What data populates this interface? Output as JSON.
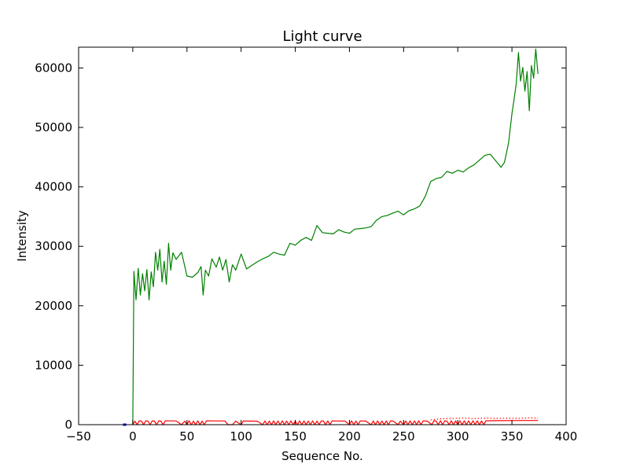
{
  "chart_data": {
    "type": "line",
    "title": "Light curve",
    "xlabel": "Sequence No.",
    "ylabel": "Intensity",
    "xlim": [
      -50,
      400
    ],
    "ylim": [
      0,
      63500
    ],
    "xticks": [
      -50,
      0,
      50,
      100,
      150,
      200,
      250,
      300,
      350,
      400
    ],
    "yticks": [
      0,
      10000,
      20000,
      30000,
      40000,
      50000,
      60000
    ],
    "xtick_labels": [
      "−50",
      "0",
      "50",
      "100",
      "150",
      "200",
      "250",
      "300",
      "350",
      "400"
    ],
    "ytick_labels": [
      "0",
      "10000",
      "20000",
      "30000",
      "40000",
      "50000",
      "60000"
    ],
    "grid": false,
    "legend": "none",
    "series": [
      {
        "color": "#008000",
        "style": "solid",
        "points": [
          [
            0,
            0
          ],
          [
            1,
            25800
          ],
          [
            3,
            21000
          ],
          [
            5,
            26300
          ],
          [
            7,
            21800
          ],
          [
            9,
            25400
          ],
          [
            11,
            22500
          ],
          [
            13,
            26100
          ],
          [
            15,
            21000
          ],
          [
            17,
            25700
          ],
          [
            19,
            23200
          ],
          [
            21,
            29000
          ],
          [
            23,
            26000
          ],
          [
            25,
            29500
          ],
          [
            27,
            24000
          ],
          [
            29,
            27500
          ],
          [
            31,
            23600
          ],
          [
            33,
            30500
          ],
          [
            35,
            26000
          ],
          [
            37,
            28900
          ],
          [
            40,
            27800
          ],
          [
            45,
            29000
          ],
          [
            50,
            25000
          ],
          [
            55,
            24800
          ],
          [
            60,
            25600
          ],
          [
            63,
            26600
          ],
          [
            65,
            21800
          ],
          [
            67,
            26000
          ],
          [
            70,
            25000
          ],
          [
            73,
            27900
          ],
          [
            77,
            26500
          ],
          [
            80,
            28200
          ],
          [
            83,
            26000
          ],
          [
            86,
            27800
          ],
          [
            89,
            24000
          ],
          [
            92,
            26900
          ],
          [
            95,
            26000
          ],
          [
            100,
            28700
          ],
          [
            105,
            26200
          ],
          [
            110,
            26800
          ],
          [
            115,
            27400
          ],
          [
            120,
            27900
          ],
          [
            125,
            28300
          ],
          [
            130,
            29000
          ],
          [
            135,
            28700
          ],
          [
            140,
            28500
          ],
          [
            145,
            30500
          ],
          [
            150,
            30200
          ],
          [
            155,
            31000
          ],
          [
            160,
            31500
          ],
          [
            165,
            31000
          ],
          [
            170,
            33500
          ],
          [
            175,
            32300
          ],
          [
            180,
            32200
          ],
          [
            185,
            32100
          ],
          [
            190,
            32800
          ],
          [
            195,
            32400
          ],
          [
            200,
            32200
          ],
          [
            205,
            32900
          ],
          [
            210,
            33000
          ],
          [
            215,
            33100
          ],
          [
            220,
            33300
          ],
          [
            225,
            34400
          ],
          [
            230,
            35000
          ],
          [
            235,
            35200
          ],
          [
            240,
            35600
          ],
          [
            245,
            35900
          ],
          [
            250,
            35300
          ],
          [
            255,
            36000
          ],
          [
            260,
            36300
          ],
          [
            265,
            36800
          ],
          [
            270,
            38400
          ],
          [
            275,
            40900
          ],
          [
            280,
            41400
          ],
          [
            285,
            41600
          ],
          [
            290,
            42600
          ],
          [
            295,
            42300
          ],
          [
            300,
            42800
          ],
          [
            305,
            42500
          ],
          [
            310,
            43200
          ],
          [
            315,
            43700
          ],
          [
            320,
            44500
          ],
          [
            325,
            45300
          ],
          [
            330,
            45500
          ],
          [
            335,
            44400
          ],
          [
            340,
            43300
          ],
          [
            343,
            44100
          ],
          [
            345,
            45700
          ],
          [
            347,
            47600
          ],
          [
            350,
            52300
          ],
          [
            352,
            54800
          ],
          [
            354,
            57400
          ],
          [
            356,
            62600
          ],
          [
            358,
            57800
          ],
          [
            360,
            60100
          ],
          [
            362,
            56100
          ],
          [
            364,
            59400
          ],
          [
            366,
            52800
          ],
          [
            368,
            60400
          ],
          [
            370,
            58300
          ],
          [
            372,
            63200
          ],
          [
            374,
            59000
          ]
        ]
      },
      {
        "color": "#ff0000",
        "style": "solid",
        "points": [
          [
            0,
            0
          ],
          [
            2,
            600
          ],
          [
            4,
            0
          ],
          [
            6,
            650
          ],
          [
            8,
            600
          ],
          [
            10,
            0
          ],
          [
            12,
            650
          ],
          [
            14,
            600
          ],
          [
            16,
            0
          ],
          [
            18,
            650
          ],
          [
            20,
            600
          ],
          [
            22,
            0
          ],
          [
            24,
            650
          ],
          [
            26,
            600
          ],
          [
            28,
            0
          ],
          [
            30,
            650
          ],
          [
            35,
            640
          ],
          [
            40,
            620
          ],
          [
            45,
            0
          ],
          [
            48,
            600
          ],
          [
            50,
            0
          ],
          [
            52,
            650
          ],
          [
            54,
            0
          ],
          [
            56,
            600
          ],
          [
            58,
            0
          ],
          [
            60,
            650
          ],
          [
            62,
            0
          ],
          [
            64,
            600
          ],
          [
            66,
            0
          ],
          [
            68,
            650
          ],
          [
            75,
            640
          ],
          [
            85,
            620
          ],
          [
            88,
            0
          ],
          [
            92,
            0
          ],
          [
            95,
            600
          ],
          [
            100,
            0
          ],
          [
            102,
            620
          ],
          [
            110,
            600
          ],
          [
            115,
            580
          ],
          [
            120,
            0
          ],
          [
            122,
            640
          ],
          [
            124,
            0
          ],
          [
            126,
            610
          ],
          [
            128,
            0
          ],
          [
            130,
            640
          ],
          [
            132,
            0
          ],
          [
            134,
            620
          ],
          [
            136,
            0
          ],
          [
            138,
            640
          ],
          [
            140,
            0
          ],
          [
            142,
            610
          ],
          [
            144,
            0
          ],
          [
            146,
            630
          ],
          [
            148,
            0
          ],
          [
            150,
            600
          ],
          [
            152,
            0
          ],
          [
            154,
            640
          ],
          [
            156,
            0
          ],
          [
            158,
            620
          ],
          [
            160,
            0
          ],
          [
            162,
            600
          ],
          [
            164,
            0
          ],
          [
            166,
            630
          ],
          [
            168,
            0
          ],
          [
            170,
            610
          ],
          [
            172,
            0
          ],
          [
            174,
            640
          ],
          [
            176,
            620
          ],
          [
            178,
            0
          ],
          [
            180,
            630
          ],
          [
            182,
            0
          ],
          [
            184,
            640
          ],
          [
            190,
            620
          ],
          [
            196,
            600
          ],
          [
            200,
            0
          ],
          [
            202,
            630
          ],
          [
            204,
            0
          ],
          [
            206,
            620
          ],
          [
            208,
            0
          ],
          [
            210,
            630
          ],
          [
            215,
            610
          ],
          [
            220,
            0
          ],
          [
            222,
            620
          ],
          [
            224,
            0
          ],
          [
            226,
            640
          ],
          [
            228,
            0
          ],
          [
            230,
            620
          ],
          [
            232,
            0
          ],
          [
            234,
            630
          ],
          [
            236,
            0
          ],
          [
            238,
            650
          ],
          [
            240,
            620
          ],
          [
            245,
            0
          ],
          [
            247,
            600
          ],
          [
            250,
            0
          ],
          [
            252,
            620
          ],
          [
            254,
            0
          ],
          [
            256,
            640
          ],
          [
            258,
            0
          ],
          [
            260,
            620
          ],
          [
            262,
            0
          ],
          [
            264,
            650
          ],
          [
            266,
            0
          ],
          [
            268,
            640
          ],
          [
            272,
            600
          ],
          [
            276,
            0
          ],
          [
            278,
            650
          ],
          [
            280,
            620
          ],
          [
            282,
            0
          ],
          [
            284,
            660
          ],
          [
            286,
            0
          ],
          [
            288,
            640
          ],
          [
            290,
            620
          ],
          [
            292,
            0
          ],
          [
            294,
            650
          ],
          [
            296,
            0
          ],
          [
            298,
            640
          ],
          [
            300,
            0
          ],
          [
            302,
            660
          ],
          [
            304,
            0
          ],
          [
            306,
            650
          ],
          [
            308,
            0
          ],
          [
            310,
            640
          ],
          [
            312,
            0
          ],
          [
            314,
            660
          ],
          [
            316,
            0
          ],
          [
            318,
            650
          ],
          [
            320,
            0
          ],
          [
            322,
            640
          ],
          [
            324,
            0
          ],
          [
            326,
            650
          ],
          [
            330,
            660
          ],
          [
            340,
            680
          ],
          [
            350,
            690
          ],
          [
            360,
            700
          ],
          [
            374,
            700
          ]
        ]
      },
      {
        "color": "#ff0000",
        "style": "dotted",
        "points": [
          [
            275,
            800
          ],
          [
            285,
            1000
          ],
          [
            295,
            1050
          ],
          [
            305,
            1100
          ],
          [
            315,
            1000
          ],
          [
            325,
            1100
          ],
          [
            335,
            1050
          ],
          [
            345,
            1100
          ],
          [
            355,
            1050
          ],
          [
            365,
            1150
          ],
          [
            374,
            1100
          ]
        ]
      },
      {
        "color": "#0000ff",
        "style": "solid",
        "points": [
          [
            -9,
            0
          ],
          [
            -6,
            0
          ]
        ]
      }
    ]
  }
}
